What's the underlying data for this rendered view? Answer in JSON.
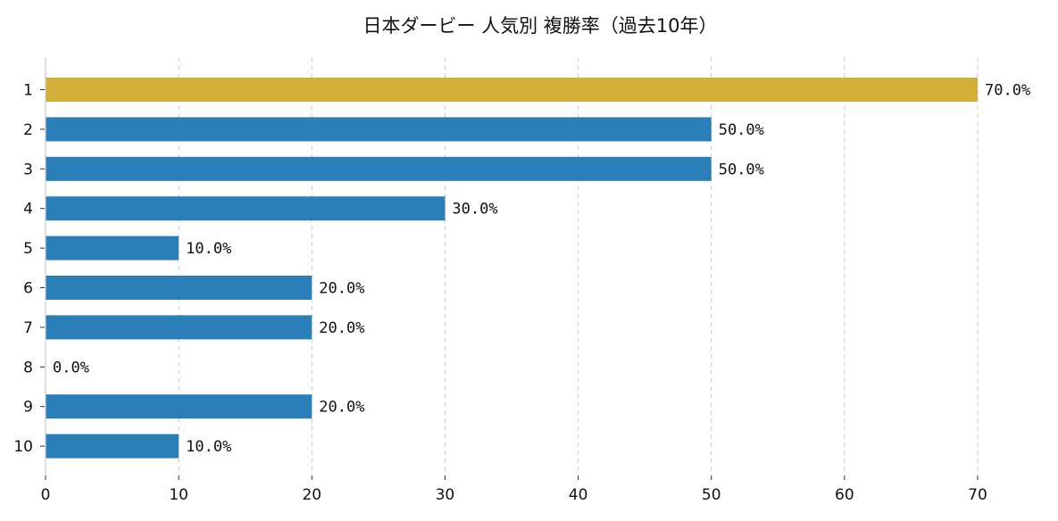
{
  "chart_data": {
    "type": "bar",
    "orientation": "horizontal",
    "title": "日本ダービー 人気別 複勝率（過去10年）",
    "xlabel": "",
    "ylabel": "",
    "categories": [
      "1",
      "2",
      "3",
      "4",
      "5",
      "6",
      "7",
      "8",
      "9",
      "10"
    ],
    "values": [
      70,
      50,
      50,
      30,
      10,
      20,
      20,
      0,
      20,
      10
    ],
    "data_labels": [
      "70.0%",
      "50.0%",
      "50.0%",
      "30.0%",
      "10.0%",
      "20.0%",
      "20.0%",
      "0.0%",
      "20.0%",
      "10.0%"
    ],
    "xlim": [
      0,
      70
    ],
    "xticks": [
      "0",
      "10",
      "20",
      "30",
      "40",
      "50",
      "60",
      "70"
    ],
    "grid": "x, dashed",
    "colors": {
      "highlight": "#D4AF37",
      "default": "#2A7FB8"
    },
    "highlight_category": "1"
  }
}
